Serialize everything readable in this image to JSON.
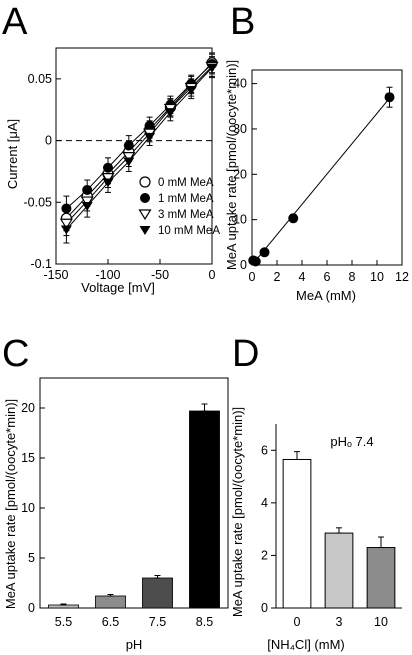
{
  "chart_data": [
    {
      "panel": "A",
      "type": "line",
      "xlabel": "Voltage [mV]",
      "ylabel": "Current [μA]",
      "xlim": [
        -150,
        0
      ],
      "ylim": [
        -0.1,
        0.075
      ],
      "xticks": [
        -150,
        -100,
        -50,
        0
      ],
      "yticks": [
        -0.1,
        -0.05,
        0,
        0.05
      ],
      "ytick_labels": [
        "-0.1",
        "-0.05",
        "0",
        "0.05"
      ],
      "zero_line": "dashed",
      "legend_position": "bottom-right",
      "x": [
        -140,
        -120,
        -100,
        -80,
        -60,
        -40,
        -20,
        0
      ],
      "series": [
        {
          "name": "0 mM MeA",
          "marker": "circle-open",
          "values": [
            -0.063,
            -0.045,
            -0.027,
            -0.009,
            0.009,
            0.027,
            0.045,
            0.063
          ],
          "err": [
            0.01,
            0.008,
            0.008,
            0.008,
            0.007,
            0.007,
            0.007,
            0.008
          ]
        },
        {
          "name": "1 mM MeA",
          "marker": "circle-filled",
          "values": [
            -0.055,
            -0.04,
            -0.022,
            -0.004,
            0.012,
            0.029,
            0.046,
            0.062
          ],
          "err": [
            0.01,
            0.008,
            0.008,
            0.008,
            0.007,
            0.007,
            0.007,
            0.008
          ]
        },
        {
          "name": "3 mM MeA",
          "marker": "triangle-open",
          "values": [
            -0.067,
            -0.049,
            -0.03,
            -0.013,
            0.006,
            0.026,
            0.043,
            0.06
          ],
          "err": [
            0.01,
            0.008,
            0.008,
            0.008,
            0.007,
            0.007,
            0.007,
            0.008
          ]
        },
        {
          "name": "10 mM MeA",
          "marker": "triangle-filled",
          "values": [
            -0.072,
            -0.053,
            -0.034,
            -0.017,
            0.003,
            0.023,
            0.041,
            0.059
          ],
          "err": [
            0.011,
            0.009,
            0.008,
            0.008,
            0.007,
            0.007,
            0.007,
            0.008
          ]
        }
      ]
    },
    {
      "panel": "B",
      "type": "scatter",
      "xlabel": "MeA (mM)",
      "ylabel": "MeA uptake rate [pmol/(oocyte*min)]",
      "xlim": [
        0,
        12
      ],
      "ylim": [
        0,
        43
      ],
      "xticks": [
        0,
        2,
        4,
        6,
        8,
        10,
        12
      ],
      "yticks": [
        0,
        10,
        20,
        30,
        40
      ],
      "fit_line": "linear",
      "x": [
        0.1,
        0.3,
        1,
        3.3,
        11
      ],
      "values": [
        1.0,
        0.8,
        2.8,
        10.3,
        37.0
      ],
      "err": [
        0.4,
        0.3,
        0.6,
        0.8,
        2.2
      ]
    },
    {
      "panel": "C",
      "type": "bar",
      "xlabel": "pH",
      "ylabel": "MeA uptake rate [pmol/(oocyte*min)]",
      "ylim": [
        0,
        23
      ],
      "yticks": [
        0,
        5,
        10,
        15,
        20
      ],
      "categories": [
        "5.5",
        "6.5",
        "7.5",
        "8.5"
      ],
      "values": [
        0.3,
        1.2,
        3.0,
        19.7
      ],
      "err": [
        0.1,
        0.15,
        0.25,
        0.7
      ],
      "colors": [
        "#bdbdbd",
        "#8c8c8c",
        "#4d4d4d",
        "#000000"
      ]
    },
    {
      "panel": "D",
      "type": "bar",
      "xlabel": "[NH₄Cl] (mM)",
      "ylabel": "MeA uptake rate [pmol/(oocyte*min)]",
      "annotation": "pHₒ 7.4",
      "ylim": [
        0,
        7
      ],
      "yticks": [
        0,
        2,
        4,
        6
      ],
      "categories": [
        "0",
        "3",
        "10"
      ],
      "values": [
        5.65,
        2.85,
        2.3
      ],
      "err": [
        0.3,
        0.2,
        0.4
      ],
      "colors": [
        "#ffffff",
        "#c8c8c8",
        "#8c8c8c"
      ]
    }
  ],
  "panel_labels": [
    "A",
    "B",
    "C",
    "D"
  ]
}
